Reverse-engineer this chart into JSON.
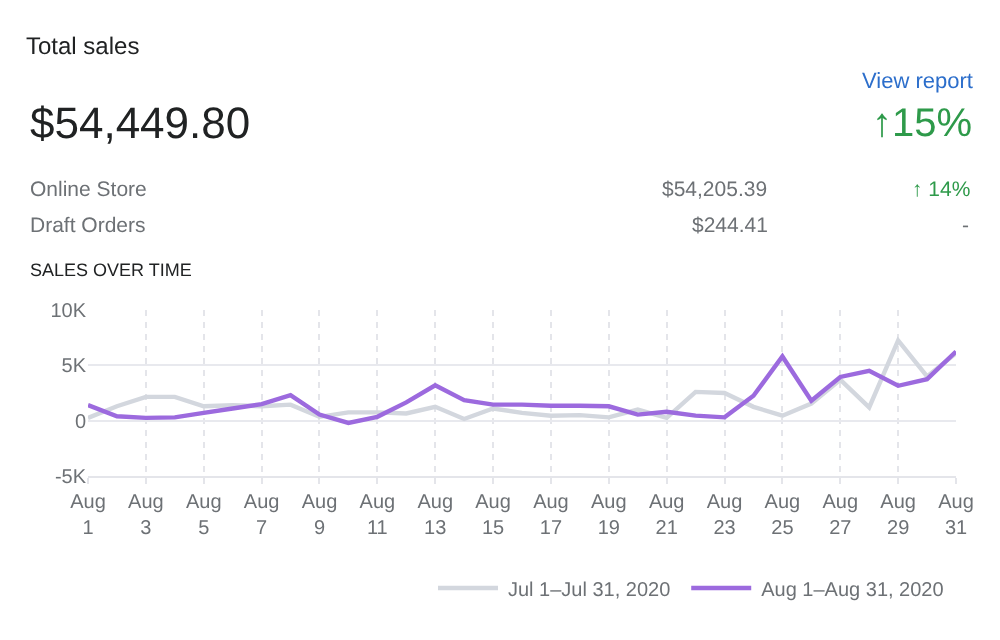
{
  "chart_data": {
    "type": "line",
    "title": "Total sales",
    "annotations": [
      "View report",
      "$54,449.80",
      "↑15%",
      "Online Store",
      "$54,205.39",
      "↑ 14%",
      "Draft Orders",
      "$244.41",
      "-",
      "SALES OVER TIME"
    ],
    "categories": [
      "Aug 1",
      null,
      "Aug 3",
      null,
      "Aug 5",
      null,
      "Aug 7",
      null,
      "Aug 9",
      null,
      "Aug 11",
      null,
      "Aug 13",
      null,
      "Aug 15",
      null,
      "Aug 17",
      null,
      "Aug 19",
      null,
      "Aug 21",
      null,
      "Aug 23",
      null,
      "Aug 25",
      null,
      "Aug 27",
      null,
      "Aug 29",
      null,
      "Aug 31"
    ],
    "series": [
      {
        "name": "Jul 1–Jul 31, 2020",
        "color": "#d3d7de",
        "values": [
          250,
          1300,
          2150,
          2150,
          1300,
          1400,
          1300,
          1450,
          350,
          750,
          750,
          650,
          1250,
          150,
          1100,
          700,
          450,
          500,
          300,
          1000,
          250,
          2600,
          2500,
          1250,
          450,
          1550,
          3700,
          1200,
          7250,
          4000,
          6100
        ]
      },
      {
        "name": "Aug 1–Aug 31, 2020",
        "color": "#9c6ade",
        "values": [
          1400,
          400,
          250,
          300,
          700,
          1100,
          1500,
          2300,
          550,
          -200,
          350,
          1650,
          3200,
          1850,
          1450,
          1450,
          1350,
          1350,
          1300,
          550,
          800,
          450,
          300,
          2250,
          5800,
          1800,
          3950,
          4500,
          3150,
          3750,
          6250
        ]
      }
    ],
    "ylim": [
      -5000,
      10000
    ],
    "yticks": [
      {
        "value": -5000,
        "label": "-5K"
      },
      {
        "value": 0,
        "label": "0"
      },
      {
        "value": 5000,
        "label": "5K"
      },
      {
        "value": 10000,
        "label": "10K"
      }
    ],
    "grid": true,
    "legend": "bottom right",
    "marker": "none",
    "line_style": "solid"
  }
}
